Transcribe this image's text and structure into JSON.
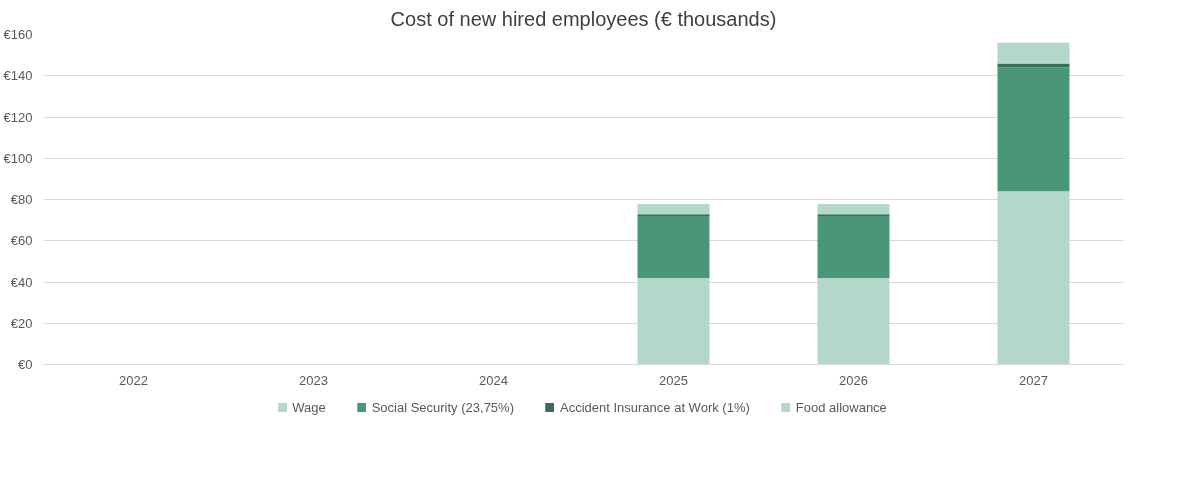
{
  "chart_data": {
    "type": "bar",
    "title": "Cost of new hired employees (€ thousands)",
    "categories": [
      "2022",
      "2023",
      "2024",
      "2025",
      "2026",
      "2027"
    ],
    "stacked": true,
    "series": [
      {
        "name": "Wage",
        "color": "#b3d7c8",
        "values": [
          0,
          0,
          0,
          42,
          42,
          84
        ]
      },
      {
        "name": "Social Security (23,75%)",
        "color": "#4a9678",
        "values": [
          0,
          0,
          0,
          30,
          30,
          60
        ]
      },
      {
        "name": "Accident Insurance at Work (1%)",
        "color": "#3a6e55",
        "values": [
          0,
          0,
          0,
          0.8,
          0.8,
          2
        ]
      },
      {
        "name": "Food allowance",
        "color": "#b3d7c8",
        "values": [
          0,
          0,
          0,
          5,
          5,
          10
        ]
      }
    ],
    "ylim": [
      0,
      160
    ],
    "yticks": [
      {
        "value": 0,
        "label": "€0"
      },
      {
        "value": 20,
        "label": "€20"
      },
      {
        "value": 40,
        "label": "€40"
      },
      {
        "value": 60,
        "label": "€60"
      },
      {
        "value": 80,
        "label": "€80"
      },
      {
        "value": 100,
        "label": "€100"
      },
      {
        "value": 120,
        "label": "€120"
      },
      {
        "value": 140,
        "label": "€140"
      },
      {
        "value": 160,
        "label": "€160"
      }
    ],
    "grid": "y",
    "legend": "bottom"
  }
}
